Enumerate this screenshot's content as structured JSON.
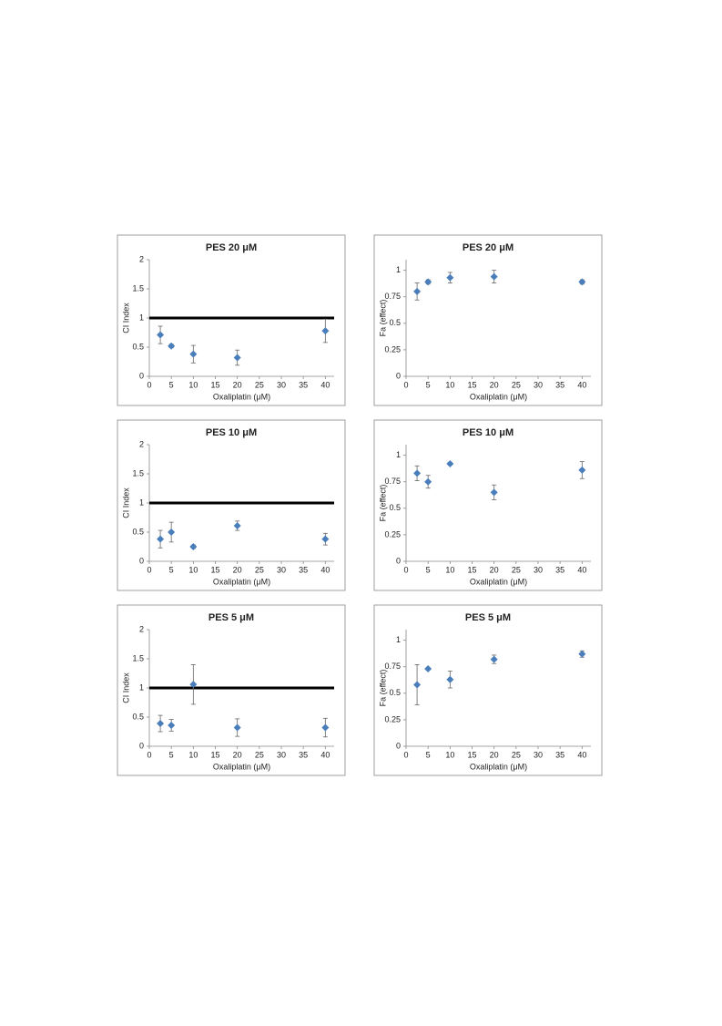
{
  "chart_data": [
    {
      "type": "scatter",
      "title": "PES 20 μM",
      "x_label": "Oxaliplatin (μM)",
      "y_label": "CI Index",
      "x": [
        2.5,
        5,
        10,
        20,
        40
      ],
      "values": [
        0.71,
        0.52,
        0.38,
        0.32,
        0.78
      ],
      "errors": [
        0.15,
        0.03,
        0.15,
        0.13,
        0.2
      ],
      "reference_line": 1,
      "color": "#4a7ebb",
      "xlim": [
        0,
        42
      ],
      "ylim": [
        0,
        2
      ],
      "xticks": [
        0,
        5,
        10,
        15,
        20,
        25,
        30,
        35,
        40
      ],
      "yticks": [
        0,
        0.5,
        1,
        1.5,
        2
      ]
    },
    {
      "type": "scatter",
      "title": "PES 20 μM",
      "x_label": "Oxaliplatin (μM)",
      "y_label": "Fa (effect)",
      "x": [
        2.5,
        5,
        10,
        20,
        40
      ],
      "values": [
        0.8,
        0.89,
        0.93,
        0.94,
        0.89
      ],
      "errors": [
        0.08,
        0.02,
        0.05,
        0.06,
        0.02
      ],
      "color": "#4a7ebb",
      "xlim": [
        0,
        42
      ],
      "ylim": [
        0,
        1.1
      ],
      "xticks": [
        0,
        5,
        10,
        15,
        20,
        25,
        30,
        35,
        40
      ],
      "yticks": [
        0,
        0.25,
        0.5,
        0.75,
        1
      ]
    },
    {
      "type": "scatter",
      "title": "PES 10 μM",
      "x_label": "Oxaliplatin (μM)",
      "y_label": "CI Index",
      "x": [
        2.5,
        5,
        10,
        20,
        40
      ],
      "values": [
        0.38,
        0.5,
        0.25,
        0.61,
        0.38
      ],
      "errors": [
        0.15,
        0.17,
        0.03,
        0.08,
        0.1
      ],
      "reference_line": 1,
      "color": "#4a7ebb",
      "xlim": [
        0,
        42
      ],
      "ylim": [
        0,
        2
      ],
      "xticks": [
        0,
        5,
        10,
        15,
        20,
        25,
        30,
        35,
        40
      ],
      "yticks": [
        0,
        0.5,
        1,
        1.5,
        2
      ]
    },
    {
      "type": "scatter",
      "title": "PES 10 μM",
      "x_label": "Oxaliplatin (μM)",
      "y_label": "Fa (effect)",
      "x": [
        2.5,
        5,
        10,
        20,
        40
      ],
      "values": [
        0.83,
        0.75,
        0.92,
        0.65,
        0.86
      ],
      "errors": [
        0.07,
        0.06,
        0.01,
        0.07,
        0.08
      ],
      "color": "#4a7ebb",
      "xlim": [
        0,
        42
      ],
      "ylim": [
        0,
        1.1
      ],
      "xticks": [
        0,
        5,
        10,
        15,
        20,
        25,
        30,
        35,
        40
      ],
      "yticks": [
        0,
        0.25,
        0.5,
        0.75,
        1
      ]
    },
    {
      "type": "scatter",
      "title": "PES 5 μM",
      "x_label": "Oxaliplatin (μM)",
      "y_label": "CI Index",
      "x": [
        2.5,
        5,
        10,
        20,
        40
      ],
      "values": [
        0.39,
        0.36,
        1.06,
        0.32,
        0.32
      ],
      "errors": [
        0.14,
        0.1,
        0.34,
        0.15,
        0.16
      ],
      "reference_line": 1,
      "color": "#4a7ebb",
      "xlim": [
        0,
        42
      ],
      "ylim": [
        0,
        2
      ],
      "xticks": [
        0,
        5,
        10,
        15,
        20,
        25,
        30,
        35,
        40
      ],
      "yticks": [
        0,
        0.5,
        1,
        1.5,
        2
      ]
    },
    {
      "type": "scatter",
      "title": "PES 5 μM",
      "x_label": "Oxaliplatin (μM)",
      "y_label": "Fa (effect)",
      "x": [
        2.5,
        5,
        10,
        20,
        40
      ],
      "values": [
        0.58,
        0.73,
        0.63,
        0.82,
        0.87
      ],
      "errors": [
        0.19,
        0.01,
        0.08,
        0.04,
        0.03
      ],
      "color": "#4a7ebb",
      "xlim": [
        0,
        42
      ],
      "ylim": [
        0,
        1.1
      ],
      "xticks": [
        0,
        5,
        10,
        15,
        20,
        25,
        30,
        35,
        40
      ],
      "yticks": [
        0,
        0.25,
        0.5,
        0.75,
        1
      ]
    }
  ]
}
